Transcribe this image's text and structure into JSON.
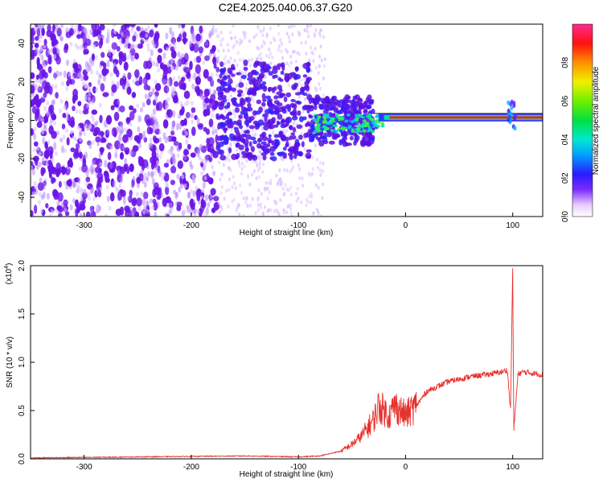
{
  "title": "C2E4.2025.040.06.37.G20",
  "colors": {
    "snr_line": "#e8302c",
    "dark_blob": "#6a14e6",
    "background": "#ffffff"
  },
  "chart_data": [
    {
      "type": "heatmap",
      "title": "C2E4.2025.040.06.37.G20",
      "xlabel": "Height of straight line (km)",
      "ylabel": "Frequency (Hz)",
      "xlim": [
        -350,
        128
      ],
      "ylim": [
        -50,
        50
      ],
      "xticks": [
        "-300",
        "-200",
        "-100",
        "0",
        "100"
      ],
      "yticks": [
        "-40",
        "-20",
        "0",
        "20",
        "40"
      ],
      "colorbar": {
        "label": "Normalized spectral amplitude",
        "range": [
          0,
          1
        ],
        "ticks": [
          "0.0",
          "0.2",
          "0.4",
          "0.6",
          "0.8"
        ]
      },
      "regions": [
        {
          "x_range": [
            -350,
            -175
          ],
          "freq_range": [
            -50,
            50
          ],
          "amplitude": "low (noise, 0.1-0.2)"
        },
        {
          "x_range": [
            -175,
            -80
          ],
          "freq_range": [
            -25,
            30
          ],
          "amplitude": "moderate (0.15-0.25)"
        },
        {
          "x_range": [
            -80,
            -30
          ],
          "freq_range": [
            -10,
            5
          ],
          "amplitude": "0.3-0.6"
        },
        {
          "x_range": [
            -30,
            128
          ],
          "freq_range": [
            0,
            3
          ],
          "amplitude": "high (0.7-1.0)"
        }
      ],
      "grid": false
    },
    {
      "type": "line",
      "xlabel": "Height of straight line (km)",
      "ylabel": "SNR (10 * v/v)",
      "y_multiplier_label": "(x10",
      "y_multiplier_exp": "4",
      "xlim": [
        -350,
        128
      ],
      "ylim": [
        0,
        2.0
      ],
      "xticks": [
        "-300",
        "-200",
        "-100",
        "0",
        "100"
      ],
      "yticks": [
        "0.0",
        "0.5",
        "1.0",
        "1.5",
        "2.0"
      ],
      "series": [
        {
          "x": [
            -350,
            -300,
            -250,
            -200,
            -150,
            -100,
            -80,
            -60,
            -50,
            -40,
            -30,
            -25,
            -20,
            -15,
            -10,
            -5,
            0,
            10,
            20,
            30,
            40,
            60,
            80,
            90,
            95,
            98,
            100,
            101,
            105,
            110,
            128
          ],
          "y": [
            0.01,
            0.015,
            0.02,
            0.025,
            0.03,
            0.02,
            0.03,
            0.08,
            0.15,
            0.25,
            0.4,
            0.55,
            0.5,
            0.45,
            0.55,
            0.5,
            0.45,
            0.55,
            0.7,
            0.75,
            0.8,
            0.85,
            0.88,
            0.9,
            0.92,
            0.5,
            2.0,
            0.3,
            0.88,
            0.9,
            0.87
          ]
        }
      ],
      "grid": false
    }
  ]
}
